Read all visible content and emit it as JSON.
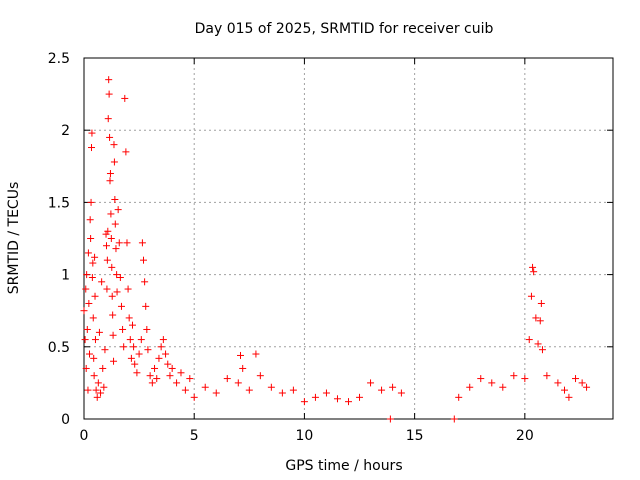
{
  "chart_data": {
    "type": "scatter",
    "title": "Day 015 of 2025, SRMTID for receiver cuib",
    "xlabel": "GPS time / hours",
    "ylabel": "SRMTID / TECUs",
    "xlim": [
      0,
      24
    ],
    "ylim": [
      0,
      2.5
    ],
    "x_ticks": [
      0,
      5,
      10,
      15,
      20
    ],
    "y_ticks": [
      0,
      0.5,
      1,
      1.5,
      2,
      2.5
    ],
    "x_tick_labels": [
      "0",
      "5",
      "10",
      "15",
      "20"
    ],
    "y_tick_labels": [
      "0",
      "0.5",
      "1",
      "1.5",
      "2",
      "2.5"
    ],
    "grid": true,
    "marker": "+",
    "color": "#ff0000",
    "series": [
      {
        "name": "SRMTID",
        "points": [
          [
            0.0,
            0.75
          ],
          [
            0.05,
            0.55
          ],
          [
            0.08,
            0.9
          ],
          [
            0.1,
            0.35
          ],
          [
            0.12,
            1.0
          ],
          [
            0.15,
            0.62
          ],
          [
            0.18,
            0.2
          ],
          [
            0.2,
            1.15
          ],
          [
            0.22,
            0.8
          ],
          [
            0.25,
            0.45
          ],
          [
            0.28,
            1.38
          ],
          [
            0.3,
            1.25
          ],
          [
            0.32,
            1.5
          ],
          [
            0.34,
            1.88
          ],
          [
            0.36,
            1.98
          ],
          [
            0.38,
            0.98
          ],
          [
            0.4,
            1.08
          ],
          [
            0.42,
            0.7
          ],
          [
            0.44,
            0.42
          ],
          [
            0.46,
            0.3
          ],
          [
            0.48,
            1.12
          ],
          [
            0.5,
            0.85
          ],
          [
            0.52,
            0.55
          ],
          [
            0.55,
            0.2
          ],
          [
            0.6,
            0.15
          ],
          [
            0.65,
            0.25
          ],
          [
            0.7,
            0.6
          ],
          [
            0.75,
            0.18
          ],
          [
            0.8,
            0.95
          ],
          [
            0.85,
            0.35
          ],
          [
            0.9,
            0.22
          ],
          [
            0.95,
            0.48
          ],
          [
            1.0,
            1.28
          ],
          [
            1.02,
            1.2
          ],
          [
            1.04,
            0.9
          ],
          [
            1.06,
            1.1
          ],
          [
            1.08,
            1.3
          ],
          [
            1.1,
            2.08
          ],
          [
            1.12,
            2.35
          ],
          [
            1.14,
            2.25
          ],
          [
            1.16,
            1.95
          ],
          [
            1.18,
            1.65
          ],
          [
            1.2,
            1.7
          ],
          [
            1.22,
            1.42
          ],
          [
            1.24,
            1.25
          ],
          [
            1.26,
            1.05
          ],
          [
            1.28,
            0.85
          ],
          [
            1.3,
            0.72
          ],
          [
            1.32,
            0.58
          ],
          [
            1.34,
            0.4
          ],
          [
            1.36,
            1.9
          ],
          [
            1.38,
            1.78
          ],
          [
            1.4,
            1.52
          ],
          [
            1.42,
            1.35
          ],
          [
            1.45,
            1.18
          ],
          [
            1.48,
            1.0
          ],
          [
            1.5,
            0.88
          ],
          [
            1.55,
            1.45
          ],
          [
            1.6,
            1.22
          ],
          [
            1.65,
            0.98
          ],
          [
            1.7,
            0.78
          ],
          [
            1.75,
            0.62
          ],
          [
            1.8,
            0.5
          ],
          [
            1.85,
            2.22
          ],
          [
            1.9,
            1.85
          ],
          [
            1.95,
            1.22
          ],
          [
            2.0,
            0.9
          ],
          [
            2.05,
            0.7
          ],
          [
            2.1,
            0.55
          ],
          [
            2.15,
            0.42
          ],
          [
            2.2,
            0.65
          ],
          [
            2.25,
            0.5
          ],
          [
            2.3,
            0.38
          ],
          [
            2.4,
            0.32
          ],
          [
            2.5,
            0.45
          ],
          [
            2.6,
            0.55
          ],
          [
            2.65,
            1.22
          ],
          [
            2.7,
            1.1
          ],
          [
            2.75,
            0.95
          ],
          [
            2.8,
            0.78
          ],
          [
            2.85,
            0.62
          ],
          [
            2.9,
            0.48
          ],
          [
            3.0,
            0.3
          ],
          [
            3.1,
            0.25
          ],
          [
            3.2,
            0.35
          ],
          [
            3.3,
            0.28
          ],
          [
            3.4,
            0.42
          ],
          [
            3.5,
            0.5
          ],
          [
            3.6,
            0.55
          ],
          [
            3.7,
            0.45
          ],
          [
            3.8,
            0.38
          ],
          [
            3.9,
            0.3
          ],
          [
            4.0,
            0.35
          ],
          [
            4.2,
            0.25
          ],
          [
            4.4,
            0.32
          ],
          [
            4.6,
            0.2
          ],
          [
            4.8,
            0.28
          ],
          [
            5.0,
            0.15
          ],
          [
            5.5,
            0.22
          ],
          [
            6.0,
            0.18
          ],
          [
            6.5,
            0.28
          ],
          [
            7.0,
            0.25
          ],
          [
            7.1,
            0.44
          ],
          [
            7.2,
            0.35
          ],
          [
            7.5,
            0.2
          ],
          [
            7.8,
            0.45
          ],
          [
            8.0,
            0.3
          ],
          [
            8.5,
            0.22
          ],
          [
            9.0,
            0.18
          ],
          [
            9.5,
            0.2
          ],
          [
            10.0,
            0.12
          ],
          [
            10.5,
            0.15
          ],
          [
            11.0,
            0.18
          ],
          [
            11.5,
            0.14
          ],
          [
            12.0,
            0.12
          ],
          [
            12.5,
            0.15
          ],
          [
            13.0,
            0.25
          ],
          [
            13.5,
            0.2
          ],
          [
            13.9,
            0.0
          ],
          [
            14.0,
            0.22
          ],
          [
            14.4,
            0.18
          ],
          [
            16.8,
            0.0
          ],
          [
            17.0,
            0.15
          ],
          [
            17.5,
            0.22
          ],
          [
            18.0,
            0.28
          ],
          [
            18.5,
            0.25
          ],
          [
            19.0,
            0.22
          ],
          [
            19.5,
            0.3
          ],
          [
            20.0,
            0.28
          ],
          [
            20.2,
            0.55
          ],
          [
            20.3,
            0.85
          ],
          [
            20.35,
            1.05
          ],
          [
            20.4,
            1.02
          ],
          [
            20.5,
            0.7
          ],
          [
            20.6,
            0.52
          ],
          [
            20.7,
            0.68
          ],
          [
            20.75,
            0.8
          ],
          [
            20.8,
            0.48
          ],
          [
            21.0,
            0.3
          ],
          [
            21.5,
            0.25
          ],
          [
            21.8,
            0.2
          ],
          [
            22.0,
            0.15
          ],
          [
            22.3,
            0.28
          ],
          [
            22.6,
            0.25
          ],
          [
            22.8,
            0.22
          ]
        ]
      }
    ]
  }
}
